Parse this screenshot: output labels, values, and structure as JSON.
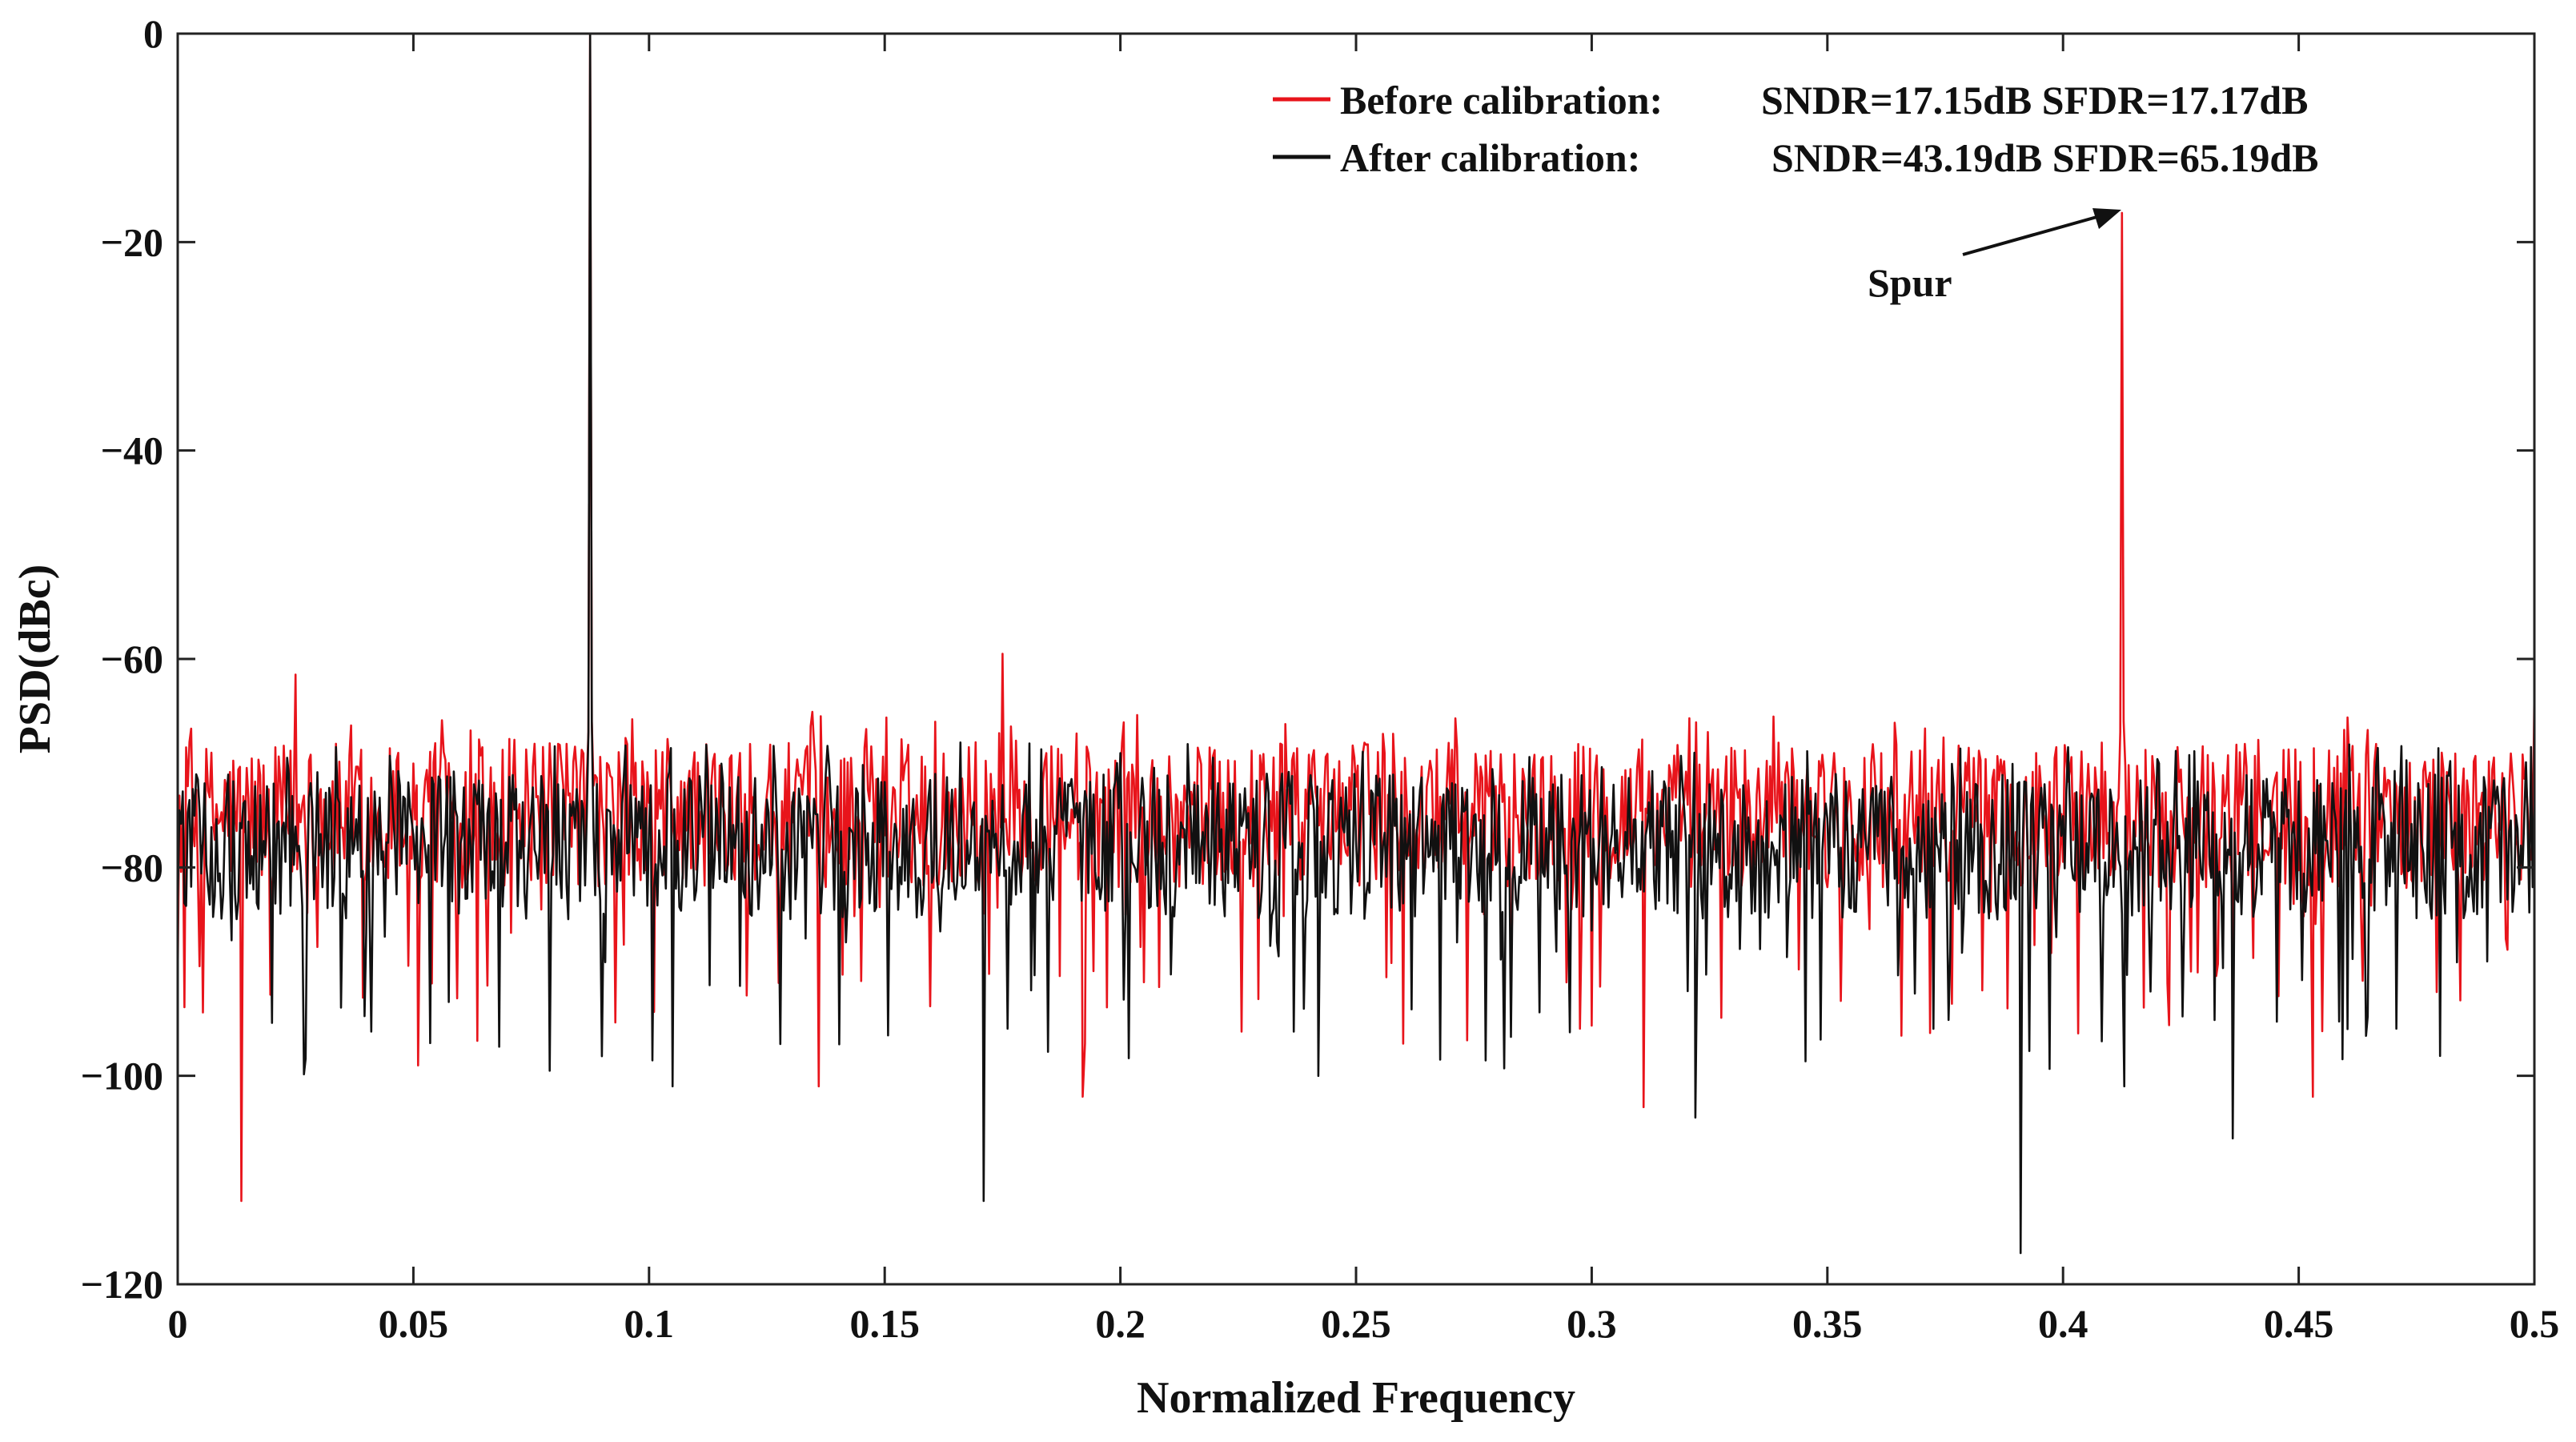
{
  "chart_data": {
    "type": "line",
    "title": "",
    "xlabel": "Normalized Frequency",
    "ylabel": "PSD(dBc)",
    "xlim": [
      0,
      0.5
    ],
    "ylim": [
      -120,
      0
    ],
    "xticks": [
      0,
      0.05,
      0.1,
      0.15,
      0.2,
      0.25,
      0.3,
      0.35,
      0.4,
      0.45,
      0.5
    ],
    "xtick_labels": [
      "0",
      "0.05",
      "0.1",
      "0.15",
      "0.2",
      "0.25",
      "0.3",
      "0.35",
      "0.4",
      "0.45",
      "0.5"
    ],
    "yticks": [
      0,
      -20,
      -40,
      -60,
      -80,
      -100,
      -120
    ],
    "ytick_labels": [
      "0",
      "−20",
      "−40",
      "−60",
      "−80",
      "−100",
      "−120"
    ],
    "grid": false,
    "legend_position": "top-right",
    "series": [
      {
        "name": "Before calibration",
        "label": "Before calibration:",
        "metrics": "SNDR=17.15dB SFDR=17.17dB",
        "color": "#e8141b",
        "noise_floor_db": -75,
        "spikes": [
          {
            "x": 0.0875,
            "y": 0
          },
          {
            "x": 0.4125,
            "y": -17.2
          },
          {
            "x": 0.175,
            "y": -59.5
          },
          {
            "x": 0.025,
            "y": -61.5
          },
          {
            "x": 0.0135,
            "y": -112
          },
          {
            "x": 0.051,
            "y": -99
          },
          {
            "x": 0.136,
            "y": -101
          },
          {
            "x": 0.192,
            "y": -102
          },
          {
            "x": 0.311,
            "y": -103
          },
          {
            "x": 0.453,
            "y": -102
          },
          {
            "x": 0.5,
            "y": -63
          }
        ]
      },
      {
        "name": "After calibration",
        "label": "After calibration:",
        "metrics": "SNDR=43.19dB SFDR=65.19dB",
        "color": "#111111",
        "noise_floor_db": -78,
        "spikes": [
          {
            "x": 0.0875,
            "y": 0
          },
          {
            "x": 0.171,
            "y": -112
          },
          {
            "x": 0.391,
            "y": -117
          },
          {
            "x": 0.105,
            "y": -101
          },
          {
            "x": 0.322,
            "y": -104
          },
          {
            "x": 0.436,
            "y": -106
          },
          {
            "x": 0.242,
            "y": -100
          },
          {
            "x": 0.413,
            "y": -101
          }
        ]
      }
    ],
    "annotations": [
      {
        "text": "Spur",
        "target": {
          "x": 0.4125,
          "y": -17.2
        }
      }
    ]
  }
}
